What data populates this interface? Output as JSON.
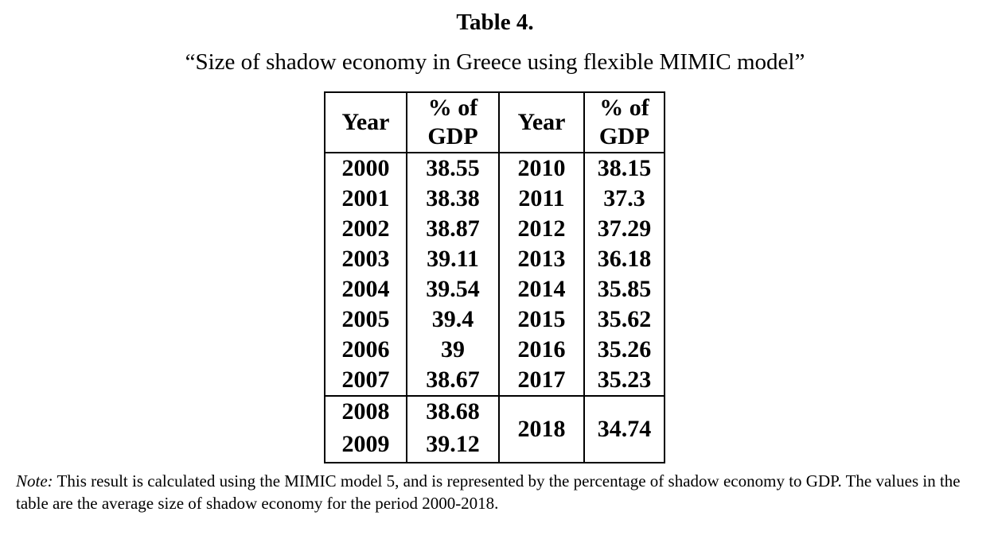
{
  "title": "Table 4.",
  "subtitle": "“Size of shadow economy in Greece using flexible MIMIC model”",
  "table": {
    "headers": [
      "Year",
      "% of GDP",
      "Year",
      "% of GDP"
    ],
    "left_rows": [
      {
        "year": "2000",
        "value": "38.55"
      },
      {
        "year": "2001",
        "value": "38.38"
      },
      {
        "year": "2002",
        "value": "38.87"
      },
      {
        "year": "2003",
        "value": "39.11"
      },
      {
        "year": "2004",
        "value": "39.54"
      },
      {
        "year": "2005",
        "value": "39.4"
      },
      {
        "year": "2006",
        "value": "39"
      },
      {
        "year": "2007",
        "value": "38.67"
      },
      {
        "year": "2008",
        "value": "38.68"
      },
      {
        "year": "2009",
        "value": "39.12"
      }
    ],
    "right_rows": [
      {
        "year": "2010",
        "value": "38.15"
      },
      {
        "year": "2011",
        "value": "37.3"
      },
      {
        "year": "2012",
        "value": "37.29"
      },
      {
        "year": "2013",
        "value": "36.18"
      },
      {
        "year": "2014",
        "value": "35.85"
      },
      {
        "year": "2015",
        "value": "35.62"
      },
      {
        "year": "2016",
        "value": "35.26"
      },
      {
        "year": "2017",
        "value": "35.23"
      },
      {
        "year": "2018",
        "value": "34.74"
      }
    ]
  },
  "note": {
    "lead": "Note:",
    "text": " This result is calculated using the MIMIC model 5, and is represented by the percentage of shadow economy to GDP. The values in the table are the average size of shadow economy for the period 2000-2018."
  }
}
